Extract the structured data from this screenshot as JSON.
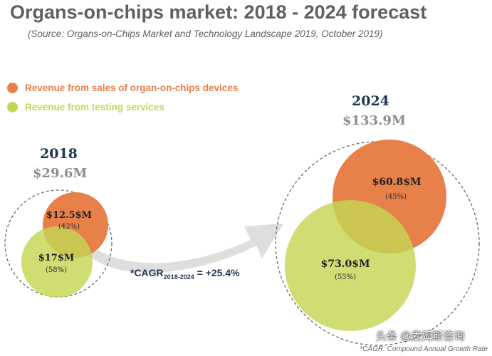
{
  "chart_data": {
    "type": "bubble",
    "title": "Organs-on-chips market: 2018 - 2024 forecast",
    "subtitle": "(Source: Organs-on-Chips Market and Technology Landscape 2019, October 2019)",
    "legend": [
      {
        "label": "Revenue from sales of organ-on-chips devices",
        "color": "#e8804a"
      },
      {
        "label": "Revenue from testing services",
        "color": "#c4d654"
      }
    ],
    "years": [
      {
        "year": "2018",
        "total": "$29.6M",
        "segments": [
          {
            "series": "devices",
            "value": "$12.5$M",
            "value_num": 12.5,
            "share": "(42%)"
          },
          {
            "series": "services",
            "value": "$17$M",
            "value_num": 17.0,
            "share": "(58%)"
          }
        ]
      },
      {
        "year": "2024",
        "total": "$133.9M",
        "segments": [
          {
            "series": "devices",
            "value": "$60.8$M",
            "value_num": 60.8,
            "share": "(45%)"
          },
          {
            "series": "services",
            "value": "$73.0$M",
            "value_num": 73.0,
            "share": "(55%)"
          }
        ]
      }
    ],
    "cagr": {
      "prefix": "*CAGR",
      "sub": "2018-2024",
      "value": " = +25.4%"
    },
    "footnote": "*CAGR: Compound Annual Growth Rate"
  },
  "watermark": "头条 @麦姆斯咨询",
  "colors": {
    "devices": "#e8804a",
    "services": "#c4d654",
    "arrow": "#dedede",
    "title": "#5d6165",
    "year": "#1f3550"
  }
}
